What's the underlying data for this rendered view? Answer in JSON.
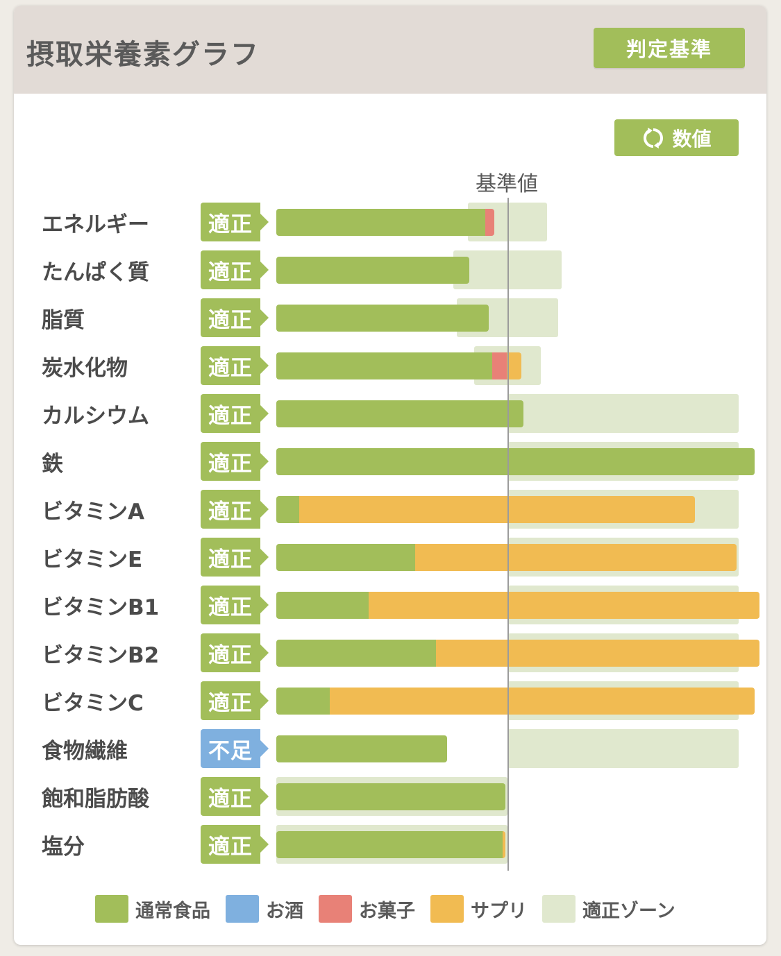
{
  "header": {
    "title": "摂取栄養素グラフ",
    "judge_button": "判定基準"
  },
  "toolbar": {
    "value_button": "数値"
  },
  "baseline_label": "基準値",
  "colors": {
    "food": "#a2be5a",
    "alcohol": "#7fb0df",
    "snack": "#e88177",
    "supplement": "#f1bb52",
    "zone": "#e0e8ce",
    "badge_ok": "#a2be5a",
    "badge_low": "#7fb0df"
  },
  "nutrients": [
    {
      "name": "エネルギー",
      "status": "適正",
      "status_type": "ok",
      "zone": [
        -0.17,
        0.17
      ],
      "segments": [
        {
          "type": "food",
          "value": -0.097
        },
        {
          "type": "snack",
          "value": -0.057
        }
      ]
    },
    {
      "name": "たんぱく質",
      "status": "適正",
      "status_type": "ok",
      "zone": [
        -0.233,
        0.233
      ],
      "segments": [
        {
          "type": "food",
          "value": -0.165
        }
      ]
    },
    {
      "name": "脂質",
      "status": "適正",
      "status_type": "ok",
      "zone": [
        -0.22,
        0.22
      ],
      "segments": [
        {
          "type": "food",
          "value": -0.08
        }
      ]
    },
    {
      "name": "炭水化物",
      "status": "適正",
      "status_type": "ok",
      "zone": [
        -0.143,
        0.143
      ],
      "segments": [
        {
          "type": "food",
          "value": -0.065
        },
        {
          "type": "snack",
          "value": -0.003
        },
        {
          "type": "supplement",
          "value": 0.06
        }
      ]
    },
    {
      "name": "カルシウム",
      "status": "適正",
      "status_type": "ok",
      "zone": [
        0,
        1.1
      ],
      "segments": [
        {
          "type": "food",
          "value": 0.07
        }
      ]
    },
    {
      "name": "鉄",
      "status": "適正",
      "status_type": "ok",
      "zone": [
        0,
        1.1
      ],
      "segments": [
        {
          "type": "food",
          "value": 1.07
        }
      ]
    },
    {
      "name": "ビタミンA",
      "status": "適正",
      "status_type": "ok",
      "zone": [
        0,
        1.1
      ],
      "segments": [
        {
          "type": "food",
          "value": -0.9
        },
        {
          "type": "supplement",
          "value": 0.81
        }
      ]
    },
    {
      "name": "ビタミンE",
      "status": "適正",
      "status_type": "ok",
      "zone": [
        0,
        1.1
      ],
      "segments": [
        {
          "type": "food",
          "value": -0.4
        },
        {
          "type": "supplement",
          "value": 0.99
        }
      ]
    },
    {
      "name": "ビタミンB1",
      "status": "適正",
      "status_type": "ok",
      "zone": [
        0,
        1.1
      ],
      "segments": [
        {
          "type": "food",
          "value": -0.6
        },
        {
          "type": "supplement",
          "value": 1.09
        }
      ]
    },
    {
      "name": "ビタミンB2",
      "status": "適正",
      "status_type": "ok",
      "zone": [
        0,
        1.1
      ],
      "segments": [
        {
          "type": "food",
          "value": -0.31
        },
        {
          "type": "supplement",
          "value": 1.09
        }
      ]
    },
    {
      "name": "ビタミンC",
      "status": "適正",
      "status_type": "ok",
      "zone": [
        0,
        1.1
      ],
      "segments": [
        {
          "type": "food",
          "value": -0.77
        },
        {
          "type": "supplement",
          "value": 1.07
        }
      ]
    },
    {
      "name": "食物繊維",
      "status": "不足",
      "status_type": "low",
      "zone": [
        0,
        1.1
      ],
      "segments": [
        {
          "type": "food",
          "value": -0.26
        }
      ]
    },
    {
      "name": "飽和脂肪酸",
      "status": "適正",
      "status_type": "ok",
      "zone": [
        -1,
        0
      ],
      "segments": [
        {
          "type": "food",
          "value": -0.01
        }
      ]
    },
    {
      "name": "塩分",
      "status": "適正",
      "status_type": "ok",
      "zone": [
        -1,
        0
      ],
      "segments": [
        {
          "type": "food",
          "value": -0.02
        },
        {
          "type": "supplement",
          "value": -0.01
        }
      ]
    }
  ],
  "legend": [
    {
      "label": "通常食品",
      "color": "#a2be5a"
    },
    {
      "label": "お酒",
      "color": "#7fb0df"
    },
    {
      "label": "お菓子",
      "color": "#e88177"
    },
    {
      "label": "サプリ",
      "color": "#f1bb52"
    },
    {
      "label": "適正ゾーン",
      "color": "#e0e8ce"
    }
  ]
}
